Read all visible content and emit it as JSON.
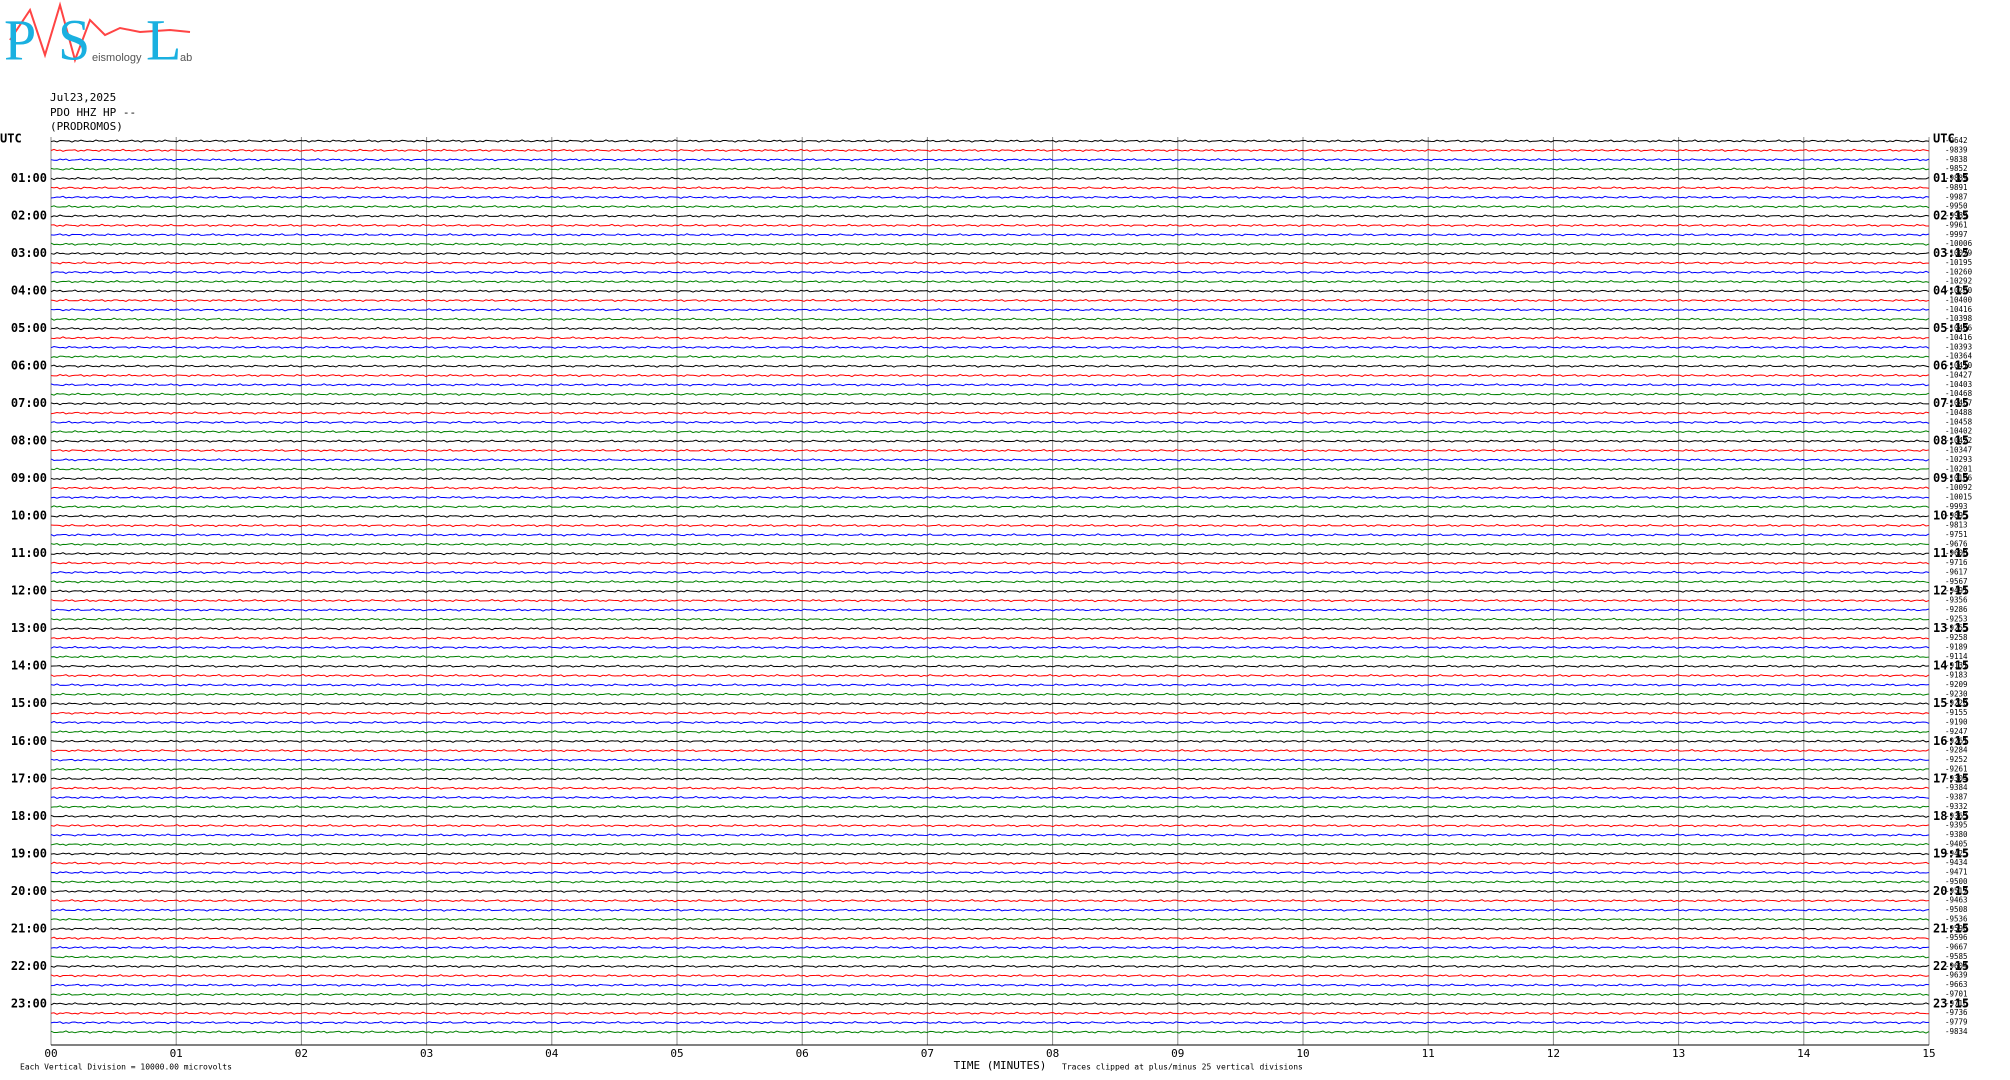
{
  "chart_data": {
    "type": "helicorder",
    "logo": {
      "letters": [
        "P",
        "S",
        "L"
      ],
      "words": [
        "eismology",
        "ab"
      ]
    },
    "header": [
      "Jul23,2025",
      "PDO HHZ HP --",
      "(PRODROMOS)"
    ],
    "left_labels": [
      "UTC",
      "01:00",
      "02:00",
      "03:00",
      "04:00",
      "05:00",
      "06:00",
      "07:00",
      "08:00",
      "09:00",
      "10:00",
      "11:00",
      "12:00",
      "13:00",
      "14:00",
      "15:00",
      "16:00",
      "17:00",
      "18:00",
      "19:00",
      "20:00",
      "21:00",
      "22:00",
      "23:00"
    ],
    "right_labels": [
      "UTC",
      "01:15",
      "02:15",
      "03:15",
      "04:15",
      "05:15",
      "06:15",
      "07:15",
      "08:15",
      "09:15",
      "10:15",
      "11:15",
      "12:15",
      "13:15",
      "14:15",
      "15:15",
      "16:15",
      "17:15",
      "18:15",
      "19:15",
      "20:15",
      "21:15",
      "22:15",
      "23:15"
    ],
    "trace_offsets": [
      -9642,
      -9839,
      -9838,
      -9852,
      -9889,
      -9891,
      -9987,
      -9950,
      -9989,
      -9961,
      -9997,
      -10006,
      -10079,
      -10195,
      -10260,
      -10292,
      -10280,
      -10400,
      -10416,
      -10398,
      -10406,
      -10416,
      -10393,
      -10364,
      -10410,
      -10427,
      -10403,
      -10468,
      -10467,
      -10488,
      -10458,
      -10402,
      -10422,
      -10347,
      -10293,
      -10201,
      -10186,
      -10092,
      -10015,
      -9993,
      -9895,
      -9813,
      -9751,
      -9676,
      -9608,
      -9716,
      -9617,
      -9567,
      -9491,
      -9356,
      -9286,
      -9253,
      -9255,
      -9258,
      -9189,
      -9114,
      -9131,
      -9183,
      -9209,
      -9230,
      -9220,
      -9155,
      -9190,
      -9247,
      -9261,
      -9284,
      -9252,
      -9261,
      -9304,
      -9384,
      -9387,
      -9332,
      -9363,
      -9395,
      -9380,
      -9405,
      -9425,
      -9434,
      -9471,
      -9500,
      -9517,
      -9463,
      -9508,
      -9536,
      -9590,
      -9596,
      -9667,
      -9585,
      -9604,
      -9639,
      -9663,
      -9701,
      -9716,
      -9736,
      -9779,
      -9834
    ],
    "trace_colors": [
      "#000000",
      "#ff0000",
      "#0000ff",
      "#008000"
    ],
    "xlim": [
      0,
      15
    ],
    "xticks": [
      {
        "value": 0,
        "label": "00"
      },
      {
        "value": 1,
        "label": "01"
      },
      {
        "value": 2,
        "label": "02"
      },
      {
        "value": 3,
        "label": "03"
      },
      {
        "value": 4,
        "label": "04"
      },
      {
        "value": 5,
        "label": "05"
      },
      {
        "value": 6,
        "label": "06"
      },
      {
        "value": 7,
        "label": "07"
      },
      {
        "value": 8,
        "label": "08"
      },
      {
        "value": 9,
        "label": "09"
      },
      10,
      11,
      12,
      13,
      14,
      15
    ],
    "xlabel": "TIME (MINUTES)",
    "scale_note": "Each Vertical Division = 10000.00 microvolts",
    "clip_note": "Traces clipped at plus/minus 25 vertical divisions",
    "grid": true
  }
}
